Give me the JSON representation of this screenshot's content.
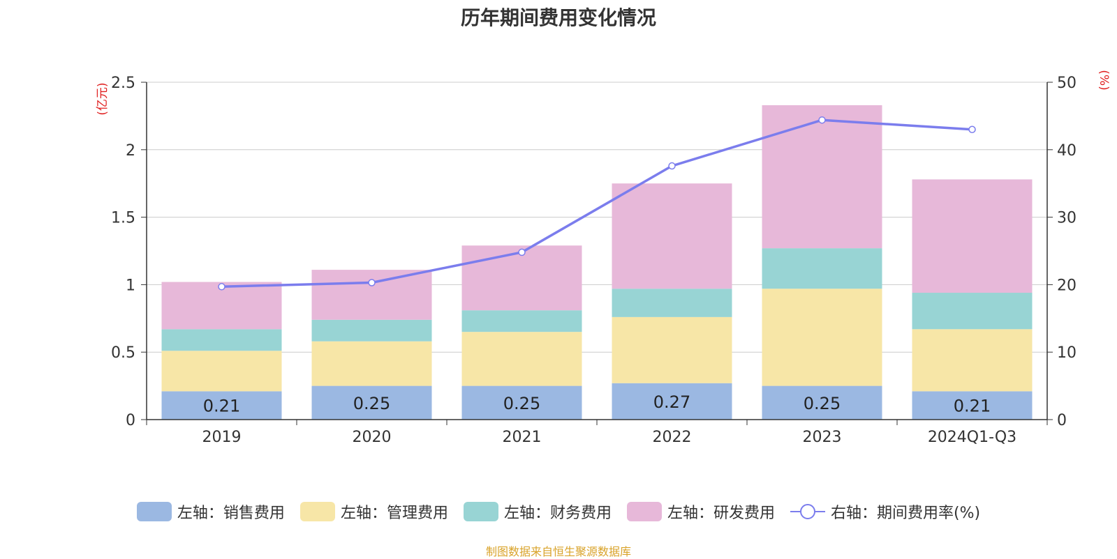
{
  "chart_data": {
    "type": "bar",
    "title": "历年期间费用变化情况",
    "categories": [
      "2019",
      "2020",
      "2021",
      "2022",
      "2023",
      "2024Q1-Q3"
    ],
    "left_axis": {
      "unit_label": "(亿元)",
      "ylim": [
        0,
        2.5
      ],
      "ticks": [
        "0",
        "0.5",
        "1",
        "1.5",
        "2",
        "2.5"
      ]
    },
    "right_axis": {
      "unit_label": "(%)",
      "ylim": [
        0,
        50
      ],
      "ticks": [
        "0",
        "10",
        "20",
        "30",
        "40",
        "50"
      ]
    },
    "grid": true,
    "series": [
      {
        "name": "左轴：销售费用",
        "type": "bar",
        "stack": true,
        "color": "#9bb8e2",
        "values": [
          0.21,
          0.25,
          0.25,
          0.27,
          0.25,
          0.21
        ],
        "labels": [
          "0.21",
          "0.25",
          "0.25",
          "0.27",
          "0.25",
          "0.21"
        ]
      },
      {
        "name": "左轴：管理费用",
        "type": "bar",
        "stack": true,
        "color": "#f7e6a7",
        "values": [
          0.3,
          0.33,
          0.4,
          0.49,
          0.72,
          0.46
        ]
      },
      {
        "name": "左轴：财务费用",
        "type": "bar",
        "stack": true,
        "color": "#98d4d4",
        "values": [
          0.16,
          0.16,
          0.16,
          0.21,
          0.3,
          0.27
        ]
      },
      {
        "name": "左轴：研发费用",
        "type": "bar",
        "stack": true,
        "color": "#e7b8d9",
        "values": [
          0.35,
          0.37,
          0.48,
          0.78,
          1.06,
          0.84
        ]
      },
      {
        "name": "右轴：期间费用率(%)",
        "type": "line",
        "axis": "right",
        "color": "#7b7ded",
        "values": [
          19.7,
          20.3,
          24.8,
          37.6,
          44.4,
          43.0
        ]
      }
    ]
  },
  "source_note": "制图数据来自恒生聚源数据库"
}
